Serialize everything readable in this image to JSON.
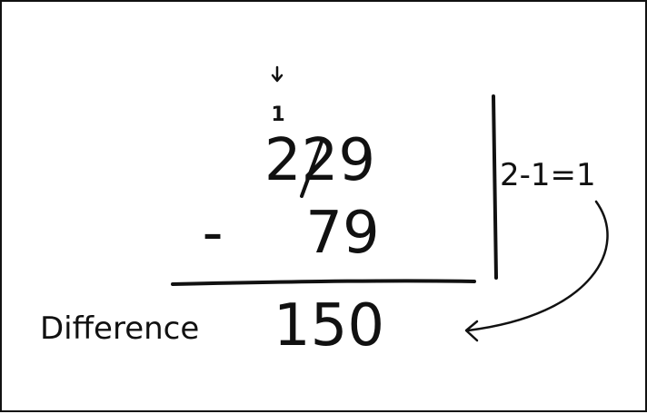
{
  "problem": {
    "borrow_arrow_icon": "down-arrow-icon",
    "borrow_digit": "1",
    "minuend": "229",
    "operator": "-",
    "subtrahend": "79",
    "difference_label": "Difference",
    "difference_value": "150"
  },
  "side_note": {
    "work": "2-1=1",
    "curved_arrow_icon": "curved-arrow-icon"
  },
  "colors": {
    "ink": "#111111",
    "background": "#ffffff",
    "frame": "#111111"
  }
}
